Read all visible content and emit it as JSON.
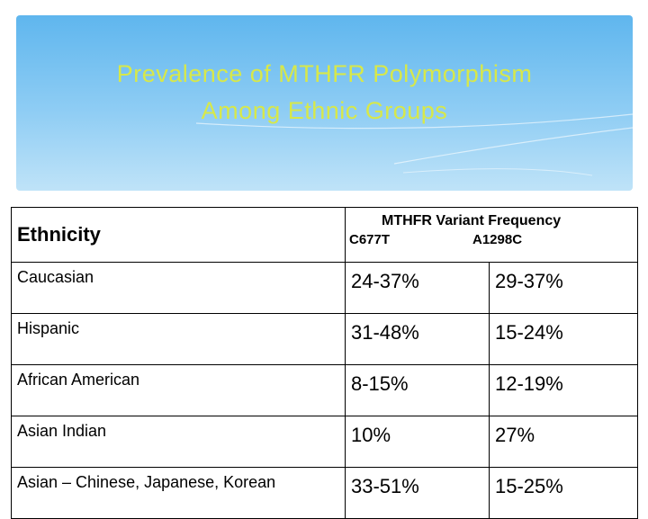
{
  "header": {
    "title_lines": [
      "Prevalence of MTHFR Polymorphism",
      "Among Ethnic Groups"
    ]
  },
  "table": {
    "header": {
      "ethnicity": "Ethnicity",
      "frequency": "MTHFR Variant Frequency",
      "variants": [
        "C677T",
        "A1298C"
      ]
    },
    "rows": [
      [
        "Caucasian",
        "24-37%",
        "29-37%"
      ],
      [
        "Hispanic",
        "31-48%",
        "15-24%"
      ],
      [
        "African American",
        "8-15%",
        "12-19%"
      ],
      [
        "Asian Indian",
        "10%",
        "27%"
      ],
      [
        "Asian – Chinese, Japanese, Korean",
        "33-51%",
        "15-25%"
      ]
    ]
  }
}
